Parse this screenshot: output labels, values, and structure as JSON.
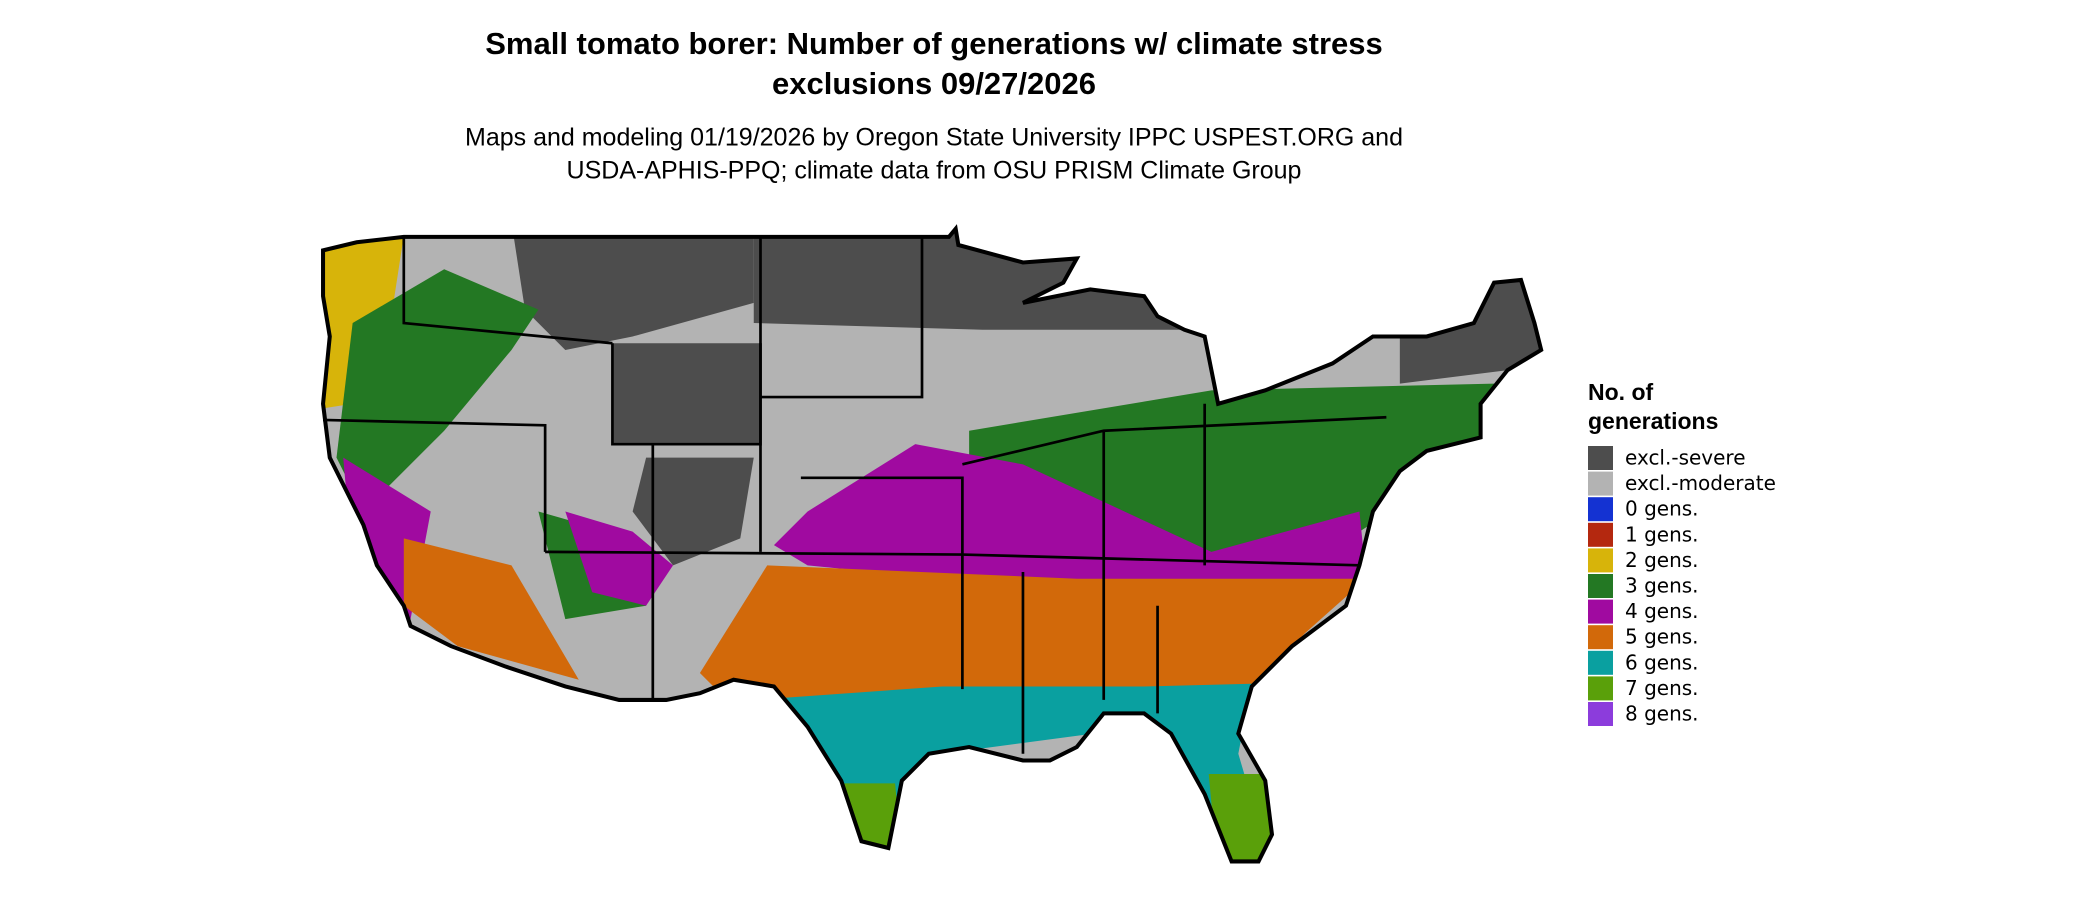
{
  "title": [
    "Small tomato borer: Number of generations w/ climate stress",
    "exclusions 09/27/2026"
  ],
  "subtitle": [
    "Maps and modeling 01/19/2026 by Oregon State University IPPC USPEST.ORG and",
    "USDA-APHIS-PPQ; climate data from OSU PRISM Climate Group"
  ],
  "legend": {
    "title": [
      "No. of",
      "generations"
    ],
    "items": [
      {
        "label": "excl.-severe",
        "color": "#4d4d4d"
      },
      {
        "label": "excl.-moderate",
        "color": "#b3b3b3"
      },
      {
        "label": "0 gens.",
        "color": "#1432d2"
      },
      {
        "label": "1 gens.",
        "color": "#b4280f"
      },
      {
        "label": "2 gens.",
        "color": "#d7b40a"
      },
      {
        "label": "3 gens.",
        "color": "#237823"
      },
      {
        "label": "4 gens.",
        "color": "#a00aa0"
      },
      {
        "label": "5 gens.",
        "color": "#d2690a"
      },
      {
        "label": "6 gens.",
        "color": "#0aa0a0"
      },
      {
        "label": "7 gens.",
        "color": "#5aa00a"
      },
      {
        "label": "8 gens.",
        "color": "#8c3cdc"
      }
    ]
  }
}
